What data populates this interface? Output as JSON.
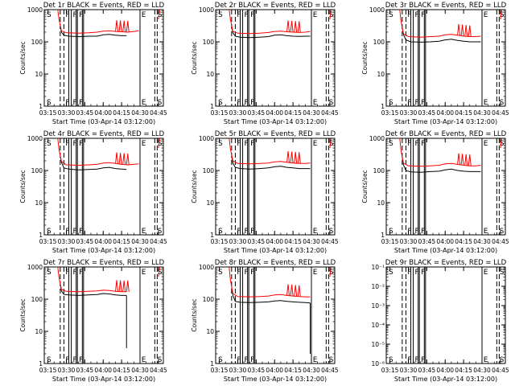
{
  "window": {
    "width": 640,
    "height": 480
  },
  "colors": {
    "events": "#000000",
    "lld": "#ff0000",
    "axis": "#000000",
    "background": "#ffffff"
  },
  "chart_data": [
    {
      "type": "line",
      "title": "Det 1r BLACK = Events, RED = LLD",
      "xlabel": "Start Time (03-Apr-14 03:12:00)",
      "ylabel": "Counts/sec",
      "yscale": "log",
      "ylim": [
        1,
        1000
      ],
      "yticks": [
        "1",
        "10",
        "100",
        "1000"
      ],
      "x_ticks": [
        "03:15",
        "03:30",
        "03:45",
        "04:00",
        "04:15",
        "04:30",
        "04:45"
      ],
      "marker_labels": [
        "S",
        "F",
        "F",
        "F",
        "E",
        "S"
      ],
      "series": [
        {
          "color": "#000000",
          "x": [
            "03:25",
            "03:26",
            "03:28",
            "03:32",
            "03:40",
            "03:48",
            "03:55",
            "04:00",
            "04:05",
            "04:10",
            "04:15",
            "04:19"
          ],
          "values": [
            300,
            200,
            160,
            150,
            145,
            150,
            150,
            165,
            170,
            160,
            155,
            155
          ]
        },
        {
          "color": "#ff0000",
          "x": [
            "03:23",
            "03:24",
            "03:26",
            "03:30",
            "03:40",
            "03:48",
            "03:55",
            "04:00",
            "04:05",
            "04:10",
            "04:15",
            "04:20",
            "04:25",
            "04:29"
          ],
          "values": [
            1000,
            500,
            220,
            190,
            185,
            190,
            200,
            215,
            220,
            210,
            205,
            200,
            210,
            220
          ]
        }
      ],
      "extra": null
    },
    {
      "type": "line",
      "title": "Det 2r BLACK = Events, RED = LLD",
      "xlabel": "Start Time (03-Apr-14 03:12:00)",
      "ylabel": "Counts/sec",
      "yscale": "log",
      "ylim": [
        1,
        1000
      ],
      "yticks": [
        "1",
        "10",
        "100",
        "1000"
      ],
      "x_ticks": [
        "03:15",
        "03:30",
        "03:45",
        "04:00",
        "04:15",
        "04:30",
        "04:45"
      ],
      "marker_labels": [
        "S",
        "F",
        "F",
        "F",
        "E",
        "S"
      ],
      "series": [
        {
          "color": "#000000",
          "x": [
            "03:25",
            "03:26",
            "03:28",
            "03:32",
            "03:40",
            "03:48",
            "03:55",
            "04:00",
            "04:05",
            "04:10",
            "04:15",
            "04:20",
            "04:25",
            "04:29"
          ],
          "values": [
            300,
            190,
            150,
            140,
            135,
            140,
            145,
            160,
            165,
            155,
            150,
            148,
            150,
            150
          ]
        },
        {
          "color": "#ff0000",
          "x": [
            "03:23",
            "03:24",
            "03:26",
            "03:30",
            "03:40",
            "03:48",
            "03:55",
            "04:00",
            "04:05",
            "04:10",
            "04:15",
            "04:20",
            "04:25",
            "04:29"
          ],
          "values": [
            1000,
            500,
            210,
            185,
            180,
            185,
            195,
            210,
            215,
            205,
            200,
            195,
            200,
            210
          ]
        }
      ],
      "extra": null
    },
    {
      "type": "line",
      "title": "Det 3r BLACK = Events, RED = LLD",
      "xlabel": "Start Time (03-Apr-14 03:12:00)",
      "ylabel": "Counts/sec",
      "yscale": "log",
      "ylim": [
        1,
        1000
      ],
      "yticks": [
        "1",
        "10",
        "100",
        "1000"
      ],
      "x_ticks": [
        "03:15",
        "03:30",
        "03:45",
        "04:00",
        "04:15",
        "04:30",
        "04:45"
      ],
      "marker_labels": [
        "S",
        "F",
        "F",
        "F",
        "E",
        "S"
      ],
      "series": [
        {
          "color": "#000000",
          "x": [
            "03:25",
            "03:26",
            "03:28",
            "03:32",
            "03:40",
            "03:48",
            "03:55",
            "04:00",
            "04:05",
            "04:10",
            "04:15",
            "04:20",
            "04:25",
            "04:29"
          ],
          "values": [
            280,
            170,
            115,
            100,
            98,
            100,
            105,
            115,
            120,
            110,
            105,
            100,
            100,
            100
          ]
        },
        {
          "color": "#ff0000",
          "x": [
            "03:23",
            "03:24",
            "03:26",
            "03:30",
            "03:40",
            "03:48",
            "03:55",
            "04:00",
            "04:05",
            "04:10",
            "04:15",
            "04:20",
            "04:25",
            "04:29"
          ],
          "values": [
            1000,
            450,
            180,
            145,
            140,
            145,
            150,
            165,
            170,
            160,
            150,
            145,
            145,
            150
          ]
        }
      ],
      "extra": null
    },
    {
      "type": "line",
      "title": "Det 4r BLACK = Events, RED = LLD",
      "xlabel": "Start Time (03-Apr-14 03:12:00)",
      "ylabel": "Counts/sec",
      "yscale": "log",
      "ylim": [
        1,
        1000
      ],
      "yticks": [
        "1",
        "10",
        "100",
        "1000"
      ],
      "x_ticks": [
        "03:15",
        "03:30",
        "03:45",
        "04:00",
        "04:15",
        "04:30",
        "04:45"
      ],
      "marker_labels": [
        "S",
        "F",
        "F",
        "F",
        "E",
        "S"
      ],
      "series": [
        {
          "color": "#000000",
          "x": [
            "03:25",
            "03:26",
            "03:28",
            "03:32",
            "03:40",
            "03:48",
            "03:55",
            "04:00",
            "04:05",
            "04:10",
            "04:15",
            "04:19"
          ],
          "values": [
            280,
            180,
            120,
            110,
            105,
            108,
            110,
            120,
            125,
            115,
            110,
            108
          ]
        },
        {
          "color": "#ff0000",
          "x": [
            "03:23",
            "03:24",
            "03:26",
            "03:30",
            "03:40",
            "03:48",
            "03:55",
            "04:00",
            "04:05",
            "04:10",
            "04:15",
            "04:20",
            "04:25",
            "04:29"
          ],
          "values": [
            1000,
            450,
            190,
            150,
            145,
            150,
            155,
            170,
            175,
            165,
            155,
            150,
            155,
            160
          ]
        }
      ],
      "extra": null
    },
    {
      "type": "line",
      "title": "Det 5r BLACK = Events, RED = LLD",
      "xlabel": "Start Time (03-Apr-14 03:12:00)",
      "ylabel": "Counts/sec",
      "yscale": "log",
      "ylim": [
        1,
        1000
      ],
      "yticks": [
        "1",
        "10",
        "100",
        "1000"
      ],
      "x_ticks": [
        "03:15",
        "03:30",
        "03:45",
        "04:00",
        "04:15",
        "04:30",
        "04:45"
      ],
      "marker_labels": [
        "S",
        "F",
        "F",
        "F",
        "E",
        "S"
      ],
      "series": [
        {
          "color": "#000000",
          "x": [
            "03:25",
            "03:26",
            "03:28",
            "03:32",
            "03:40",
            "03:48",
            "03:55",
            "04:00",
            "04:05",
            "04:10",
            "04:15",
            "04:20",
            "04:25",
            "04:29"
          ],
          "values": [
            280,
            170,
            125,
            115,
            110,
            115,
            120,
            130,
            135,
            125,
            120,
            115,
            115,
            115
          ]
        },
        {
          "color": "#ff0000",
          "x": [
            "03:23",
            "03:24",
            "03:26",
            "03:30",
            "03:40",
            "03:48",
            "03:55",
            "04:00",
            "04:05",
            "04:10",
            "04:15",
            "04:20",
            "04:25",
            "04:29"
          ],
          "values": [
            1000,
            480,
            200,
            165,
            160,
            165,
            170,
            185,
            190,
            180,
            170,
            165,
            165,
            170
          ]
        }
      ],
      "extra": null
    },
    {
      "type": "line",
      "title": "Det 6r BLACK = Events, RED = LLD",
      "xlabel": "Start Time (03-Apr-14 03:12:00)",
      "ylabel": "Counts/sec",
      "yscale": "log",
      "ylim": [
        1,
        1000
      ],
      "yticks": [
        "1",
        "10",
        "100",
        "1000"
      ],
      "x_ticks": [
        "03:15",
        "03:30",
        "03:45",
        "04:00",
        "04:15",
        "04:30",
        "04:45"
      ],
      "marker_labels": [
        "S",
        "F",
        "F",
        "F",
        "E",
        "S"
      ],
      "series": [
        {
          "color": "#000000",
          "x": [
            "03:25",
            "03:26",
            "03:28",
            "03:32",
            "03:40",
            "03:48",
            "03:55",
            "04:00",
            "04:05",
            "04:10",
            "04:15",
            "04:20",
            "04:25",
            "04:29"
          ],
          "values": [
            260,
            150,
            100,
            90,
            88,
            92,
            95,
            105,
            110,
            100,
            95,
            92,
            92,
            92
          ]
        },
        {
          "color": "#ff0000",
          "x": [
            "03:23",
            "03:24",
            "03:26",
            "03:30",
            "03:40",
            "03:48",
            "03:55",
            "04:00",
            "04:05",
            "04:10",
            "04:15",
            "04:20",
            "04:25",
            "04:29"
          ],
          "values": [
            1000,
            420,
            170,
            140,
            135,
            140,
            145,
            160,
            165,
            155,
            145,
            140,
            140,
            145
          ]
        }
      ],
      "extra": null
    },
    {
      "type": "line",
      "title": "Det 7r BLACK = Events, RED = LLD",
      "xlabel": "Start Time (03-Apr-14 03:12:00)",
      "ylabel": "Counts/sec",
      "yscale": "log",
      "ylim": [
        1,
        1000
      ],
      "yticks": [
        "1",
        "10",
        "100",
        "1000"
      ],
      "x_ticks": [
        "03:15",
        "03:30",
        "03:45",
        "04:00",
        "04:15",
        "04:30",
        "04:45"
      ],
      "marker_labels": [
        "S",
        "F",
        "F",
        "F",
        "E",
        "S"
      ],
      "series": [
        {
          "color": "#000000",
          "x": [
            "03:25",
            "03:26",
            "03:28",
            "03:32",
            "03:40",
            "03:48",
            "03:55",
            "04:00",
            "04:05",
            "04:10",
            "04:15",
            "04:19"
          ],
          "values": [
            290,
            180,
            140,
            135,
            130,
            135,
            140,
            150,
            145,
            135,
            130,
            130
          ]
        },
        {
          "color": "#ff0000",
          "x": [
            "03:23",
            "03:24",
            "03:26",
            "03:30",
            "03:40",
            "03:48",
            "03:55",
            "04:00",
            "04:05",
            "04:10",
            "04:15",
            "04:19"
          ],
          "values": [
            1000,
            470,
            200,
            175,
            170,
            175,
            180,
            190,
            185,
            175,
            170,
            170
          ]
        }
      ],
      "extra": "drop"
    },
    {
      "type": "line",
      "title": "Det 8r BLACK = Events, RED = LLD",
      "xlabel": "Start Time (03-Apr-14 03:12:00)",
      "ylabel": "Counts/sec",
      "yscale": "log",
      "ylim": [
        1,
        1000
      ],
      "yticks": [
        "1",
        "10",
        "100",
        "1000"
      ],
      "x_ticks": [
        "03:15",
        "03:30",
        "03:45",
        "04:00",
        "04:15",
        "04:30",
        "04:45"
      ],
      "marker_labels": [
        "S",
        "F",
        "F",
        "F",
        "E",
        "S"
      ],
      "series": [
        {
          "color": "#000000",
          "x": [
            "03:25",
            "03:26",
            "03:28",
            "03:32",
            "03:40",
            "03:48",
            "03:55",
            "04:00",
            "04:05",
            "04:10",
            "04:15",
            "04:20",
            "04:25",
            "04:29"
          ],
          "values": [
            230,
            130,
            85,
            80,
            78,
            80,
            82,
            88,
            90,
            85,
            82,
            80,
            78,
            76
          ]
        },
        {
          "color": "#ff0000",
          "x": [
            "03:23",
            "03:24",
            "03:26",
            "03:30",
            "03:40",
            "03:48",
            "03:55",
            "04:00",
            "04:05",
            "04:10",
            "04:15",
            "04:20",
            "04:25",
            "04:29"
          ],
          "values": [
            1000,
            400,
            150,
            120,
            118,
            120,
            125,
            135,
            140,
            130,
            125,
            120,
            118,
            118
          ]
        }
      ],
      "extra": "drop"
    },
    {
      "type": "line",
      "title": "Det 9r BLACK = Events, RED = LLD",
      "xlabel": "Start Time (03-Apr-14 03:12:00)",
      "ylabel": "",
      "yscale": "log",
      "ylim": [
        1e-06,
        0.1
      ],
      "yticks": [
        "10⁻⁶",
        "10⁻⁵",
        "10⁻⁴",
        "10⁻³",
        "10⁻²",
        "10⁻¹"
      ],
      "x_ticks": [
        "03:15",
        "03:30",
        "03:45",
        "04:00",
        "04:15",
        "04:30",
        "04:45"
      ],
      "marker_labels": [
        "S",
        "F",
        "F",
        "F",
        "E",
        "S"
      ],
      "series": [],
      "extra": null
    }
  ]
}
